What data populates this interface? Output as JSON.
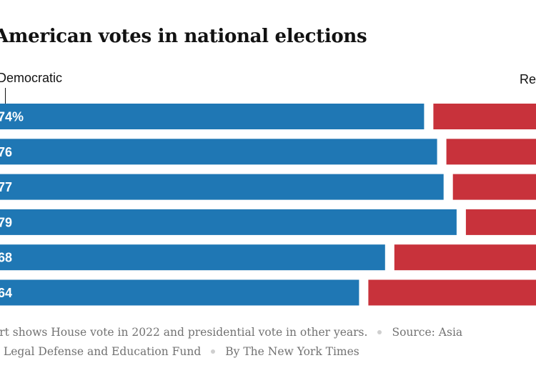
{
  "title": "American votes in national elections",
  "legend": {
    "democratic": "Democratic",
    "republican": "Re"
  },
  "colors": {
    "democratic": "#1f77b4",
    "republican": "#c8323b",
    "text": "#121212",
    "footnote": "#727272"
  },
  "chart_data": {
    "type": "bar",
    "orientation": "horizontal-stacked-split",
    "series": [
      {
        "name": "Democratic",
        "values": [
          74,
          76,
          77,
          79,
          68,
          64
        ],
        "labels": [
          "74%",
          "76",
          "77",
          "79",
          "68",
          "64"
        ]
      }
    ],
    "title": "American votes in national elections"
  },
  "footnote": {
    "line1_a": "art shows House vote in 2022 and presidential vote in other years.",
    "line1_b": "Source: Asia",
    "line2_a": "n Legal Defense and Education Fund",
    "line2_b": "By The New York Times"
  }
}
